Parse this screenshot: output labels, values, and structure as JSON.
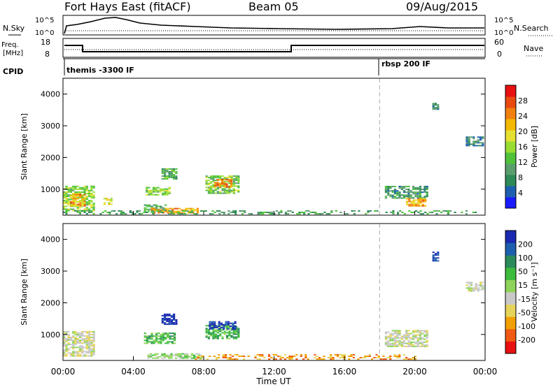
{
  "header": {
    "station": "Fort Hays East (fitACF)",
    "beam": "Beam 05",
    "date": "09/Aug/2015"
  },
  "panels": {
    "nsky": {
      "left_label": "N.Sky",
      "right_label": "N.Search",
      "left_ticks": [
        "10^5",
        "10^0"
      ],
      "right_ticks": [
        "10^5",
        "10^0"
      ]
    },
    "freq": {
      "left_label_1": "Freq.",
      "left_label_2": "[MHz]",
      "right_label": "Nave",
      "left_ticks": [
        "18",
        "8"
      ],
      "right_ticks": [
        "60",
        "0"
      ]
    },
    "cpid": {
      "label": "CPID",
      "modes": [
        {
          "text": "themis -3300 IF",
          "start_hour": 0
        },
        {
          "text": "rbsp 200 IF",
          "start_hour": 18
        }
      ]
    }
  },
  "colors": {
    "power_scale": [
      "#1a1aff",
      "#1f5fb0",
      "#2e8a57",
      "#5a9e6e",
      "#4fc23a",
      "#99dd33",
      "#e6e033",
      "#f5b800",
      "#f08010",
      "#e84a10",
      "#e81010"
    ],
    "velocity_scale": [
      "#e81010",
      "#f05a14",
      "#f0a000",
      "#e6d45a",
      "#c8c8c8",
      "#8fd45a",
      "#3dbb3d",
      "#2a8a5a",
      "#1d5fae",
      "#1a2ab0"
    ],
    "gray": "#c8c8c8"
  },
  "chart_data": [
    {
      "type": "heatmap",
      "name": "power",
      "ylabel": "Slant Range [km]",
      "xlabel": "",
      "x_ticks": [
        "00:00",
        "04:00",
        "08:00",
        "12:00",
        "16:00",
        "20:00",
        "00:00"
      ],
      "x_range_hours": [
        0,
        24
      ],
      "y_ticks": [
        "1000",
        "2000",
        "3000",
        "4000"
      ],
      "ylim_km": [
        180,
        4500
      ],
      "colorbar": {
        "title": "Power [dB]",
        "ticks": [
          "4",
          "8",
          "12",
          "16",
          "20",
          "24",
          "28"
        ],
        "range": [
          0,
          30
        ]
      },
      "marker_hour": 18,
      "regions": [
        {
          "h0": 0.0,
          "h1": 1.7,
          "r0": 300,
          "r1": 1100,
          "v": 14
        },
        {
          "h0": 0.4,
          "h1": 1.3,
          "r0": 450,
          "r1": 850,
          "v": 22
        },
        {
          "h0": 2.3,
          "h1": 2.8,
          "r0": 500,
          "r1": 700,
          "v": 18
        },
        {
          "h0": 4.6,
          "h1": 5.8,
          "r0": 250,
          "r1": 500,
          "v": 10
        },
        {
          "h0": 5.0,
          "h1": 7.6,
          "r0": 230,
          "r1": 380,
          "v": 22
        },
        {
          "h0": 5.6,
          "h1": 6.4,
          "r0": 1300,
          "r1": 1650,
          "v": 10
        },
        {
          "h0": 4.7,
          "h1": 6.0,
          "r0": 800,
          "r1": 1050,
          "v": 14
        },
        {
          "h0": 8.1,
          "h1": 10.0,
          "r0": 850,
          "r1": 1420,
          "v": 13
        },
        {
          "h0": 8.6,
          "h1": 9.6,
          "r0": 1050,
          "r1": 1300,
          "v": 24
        },
        {
          "h0": 18.3,
          "h1": 20.7,
          "r0": 700,
          "r1": 1100,
          "v": 8
        },
        {
          "h0": 19.5,
          "h1": 20.6,
          "r0": 450,
          "r1": 700,
          "v": 22
        },
        {
          "h0": 22.9,
          "h1": 23.9,
          "r0": 2350,
          "r1": 2650,
          "v": 6
        },
        {
          "h0": 21.0,
          "h1": 21.3,
          "r0": 3500,
          "r1": 3700,
          "v": 6
        },
        {
          "h0": 0.0,
          "h1": 23.5,
          "r0": 200,
          "r1": 320,
          "v": 9,
          "sparse": true
        }
      ]
    },
    {
      "type": "heatmap",
      "name": "velocity",
      "ylabel": "Slant Range [km]",
      "xlabel": "Time UT",
      "x_ticks": [
        "00:00",
        "04:00",
        "08:00",
        "12:00",
        "16:00",
        "20:00",
        "00:00"
      ],
      "x_range_hours": [
        0,
        24
      ],
      "y_ticks": [
        "1000",
        "2000",
        "3000",
        "4000"
      ],
      "ylim_km": [
        180,
        4500
      ],
      "colorbar": {
        "title": "Velocity [m s⁻¹]",
        "ticks": [
          "-200",
          "-100",
          "-50",
          "-15",
          "15",
          "50",
          "100",
          "200"
        ]
      },
      "marker_hour": 18,
      "regions": [
        {
          "h0": 0.0,
          "h1": 1.7,
          "r0": 300,
          "r1": 1100,
          "v": 4
        },
        {
          "h0": 4.6,
          "h1": 6.3,
          "r0": 700,
          "r1": 1050,
          "v": 6
        },
        {
          "h0": 5.6,
          "h1": 6.4,
          "r0": 1300,
          "r1": 1650,
          "v": 9
        },
        {
          "h0": 8.1,
          "h1": 10.0,
          "r0": 850,
          "r1": 1300,
          "v": 6
        },
        {
          "h0": 8.3,
          "h1": 9.8,
          "r0": 1150,
          "r1": 1420,
          "v": 9
        },
        {
          "h0": 4.8,
          "h1": 7.8,
          "r0": 230,
          "r1": 380,
          "v": 5
        },
        {
          "h0": 7.5,
          "h1": 20.0,
          "r0": 200,
          "r1": 360,
          "v": 2,
          "sparse": true
        },
        {
          "h0": 18.3,
          "h1": 20.7,
          "r0": 600,
          "r1": 1100,
          "v": 4
        },
        {
          "h0": 22.9,
          "h1": 23.9,
          "r0": 2350,
          "r1": 2650,
          "v": 4
        },
        {
          "h0": 21.0,
          "h1": 21.3,
          "r0": 3300,
          "r1": 3600,
          "v": 9
        }
      ]
    }
  ]
}
